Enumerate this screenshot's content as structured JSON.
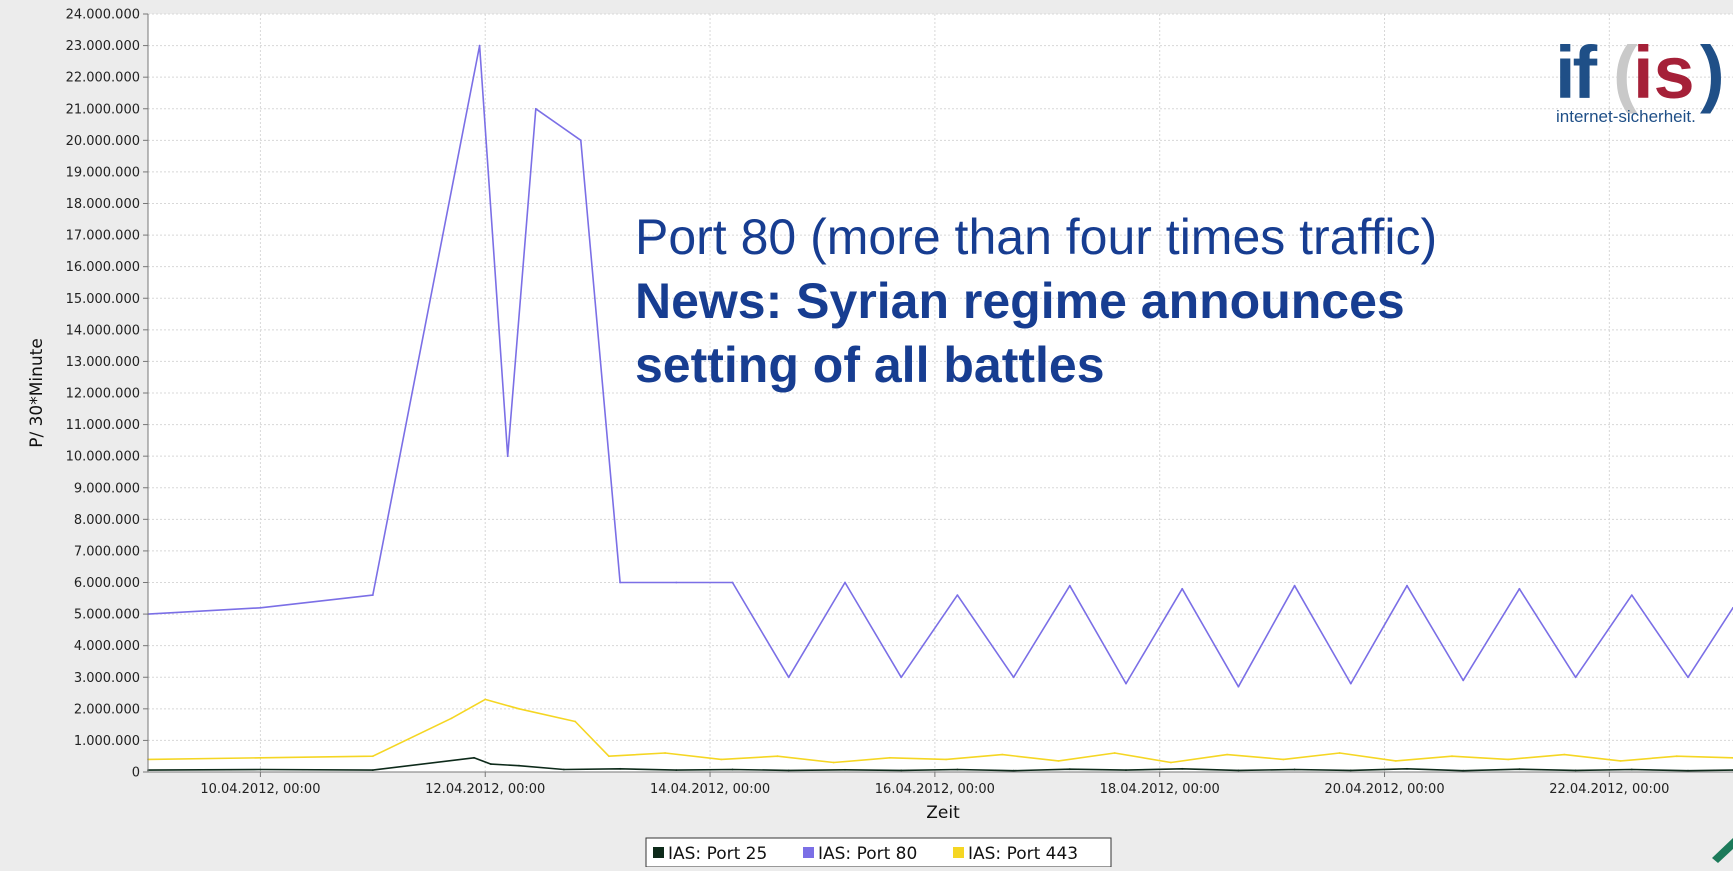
{
  "chart_data": {
    "type": "line",
    "title": "",
    "xlabel": "Zeit",
    "ylabel": "P/ 30*Minute",
    "ylim": [
      0,
      24000000
    ],
    "xlim": [
      9.0,
      23.1
    ],
    "y_ticks": [
      0,
      1000000,
      2000000,
      3000000,
      4000000,
      5000000,
      6000000,
      7000000,
      8000000,
      9000000,
      10000000,
      11000000,
      12000000,
      13000000,
      14000000,
      15000000,
      16000000,
      17000000,
      18000000,
      19000000,
      20000000,
      21000000,
      22000000,
      23000000,
      24000000
    ],
    "y_tick_labels": [
      "0",
      "1.000.000",
      "2.000.000",
      "3.000.000",
      "4.000.000",
      "5.000.000",
      "6.000.000",
      "7.000.000",
      "8.000.000",
      "9.000.000",
      "10.000.000",
      "11.000.000",
      "12.000.000",
      "13.000.000",
      "14.000.000",
      "15.000.000",
      "16.000.000",
      "17.000.000",
      "18.000.000",
      "19.000.000",
      "20.000.000",
      "21.000.000",
      "22.000.000",
      "23.000.000",
      "24.000.000"
    ],
    "x_ticks": [
      10,
      12,
      14,
      16,
      18,
      20,
      22
    ],
    "x_tick_labels": [
      "10.04.2012, 00:00",
      "12.04.2012, 00:00",
      "14.04.2012, 00:00",
      "16.04.2012, 00:00",
      "18.04.2012, 00:00",
      "20.04.2012, 00:00",
      "22.04.2012, 00:00"
    ],
    "grid": true,
    "legend_position": "bottom-center",
    "annotation": {
      "line1": "Port 80 (more than four times traffic)",
      "line2": "News: Syrian regime announces",
      "line3": "setting of all battles"
    },
    "series": [
      {
        "name": "IAS: Port 25",
        "color": "#0d2a1a",
        "x": [
          9.0,
          10.0,
          11.0,
          11.9,
          12.05,
          12.3,
          12.7,
          13.2,
          13.7,
          14.2,
          14.7,
          15.2,
          15.7,
          16.2,
          16.7,
          17.2,
          17.7,
          18.2,
          18.7,
          19.2,
          19.7,
          20.2,
          20.7,
          21.2,
          21.7,
          22.2,
          22.7,
          23.1
        ],
        "values": [
          60000,
          80000,
          60000,
          450000,
          250000,
          200000,
          80000,
          100000,
          60000,
          80000,
          50000,
          70000,
          50000,
          80000,
          40000,
          90000,
          60000,
          100000,
          50000,
          80000,
          50000,
          100000,
          40000,
          90000,
          50000,
          80000,
          40000,
          60000
        ]
      },
      {
        "name": "IAS: Port 80",
        "color": "#7b6fe6",
        "x": [
          9.0,
          10.0,
          11.0,
          11.95,
          12.2,
          12.45,
          12.85,
          13.2,
          13.7,
          14.2,
          14.7,
          15.2,
          15.7,
          16.2,
          16.7,
          17.2,
          17.7,
          18.2,
          18.7,
          19.2,
          19.7,
          20.2,
          20.7,
          21.2,
          21.7,
          22.2,
          22.7,
          23.1
        ],
        "values": [
          5000000,
          5200000,
          5600000,
          23000000,
          10000000,
          21000000,
          20000000,
          6000000,
          6000000,
          6000000,
          3000000,
          6000000,
          3000000,
          5600000,
          3000000,
          5900000,
          2800000,
          5800000,
          2700000,
          5900000,
          2800000,
          5900000,
          2900000,
          5800000,
          3000000,
          5600000,
          3000000,
          5200000
        ]
      },
      {
        "name": "IAS: Port 443",
        "color": "#f5d623",
        "x": [
          9.0,
          10.0,
          11.0,
          11.7,
          12.0,
          12.3,
          12.8,
          13.1,
          13.6,
          14.1,
          14.6,
          15.1,
          15.6,
          16.1,
          16.6,
          17.1,
          17.6,
          18.1,
          18.6,
          19.1,
          19.6,
          20.1,
          20.6,
          21.1,
          21.6,
          22.1,
          22.6,
          23.1
        ],
        "values": [
          400000,
          450000,
          500000,
          1700000,
          2300000,
          2000000,
          1600000,
          500000,
          600000,
          400000,
          500000,
          300000,
          450000,
          400000,
          550000,
          350000,
          600000,
          300000,
          550000,
          400000,
          600000,
          350000,
          500000,
          400000,
          550000,
          350000,
          500000,
          450000
        ]
      }
    ]
  },
  "logo": {
    "letters": "if(is)",
    "tagline": "internet-sicherheit."
  }
}
